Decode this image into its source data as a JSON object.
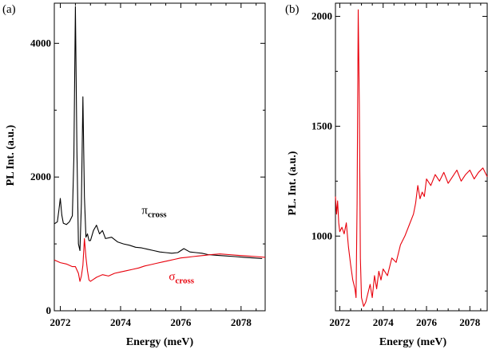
{
  "chart_data": [
    {
      "panel_label": "(a)",
      "type": "line",
      "xlabel": "Energy (meV)",
      "ylabel": "PL Int. (a.u.)",
      "xlim": [
        2071.8,
        2078.8
      ],
      "ylim": [
        0,
        4600
      ],
      "x_ticks": [
        2072,
        2074,
        2076,
        2078
      ],
      "x_tick_labels": [
        "2072",
        "2074",
        "2076",
        "2078"
      ],
      "y_ticks": [
        0,
        2000,
        4000
      ],
      "y_tick_labels": [
        "0",
        "2000",
        "4000"
      ],
      "grid": false,
      "legend": "inline labels",
      "series": [
        {
          "name": "π",
          "subscript": "cross",
          "color": "#000000",
          "label_at": [
            2074.7,
            1450
          ],
          "x": [
            2071.8,
            2071.9,
            2071.95,
            2072.0,
            2072.05,
            2072.1,
            2072.2,
            2072.3,
            2072.4,
            2072.45,
            2072.5,
            2072.55,
            2072.6,
            2072.65,
            2072.7,
            2072.75,
            2072.8,
            2072.85,
            2072.9,
            2072.95,
            2073.0,
            2073.1,
            2073.2,
            2073.3,
            2073.4,
            2073.5,
            2073.7,
            2073.9,
            2074.1,
            2074.3,
            2074.5,
            2074.7,
            2074.9,
            2075.1,
            2075.3,
            2075.5,
            2075.7,
            2075.9,
            2076.1,
            2076.3,
            2076.5,
            2076.7,
            2076.9,
            2077.2,
            2077.5,
            2077.8,
            2078.1,
            2078.4,
            2078.7
          ],
          "y": [
            1300,
            1330,
            1500,
            1680,
            1430,
            1310,
            1290,
            1330,
            1420,
            2300,
            4550,
            2400,
            1000,
            900,
            1600,
            3200,
            1700,
            1100,
            1150,
            1050,
            1050,
            1200,
            1280,
            1150,
            1200,
            1080,
            1100,
            1030,
            1000,
            980,
            950,
            940,
            920,
            900,
            880,
            870,
            860,
            870,
            930,
            880,
            870,
            860,
            840,
            830,
            820,
            810,
            800,
            790,
            780
          ]
        },
        {
          "name": "σ",
          "subscript": "cross",
          "color": "#e8000b",
          "label_at": [
            2075.6,
            460
          ],
          "x": [
            2071.8,
            2072.0,
            2072.2,
            2072.4,
            2072.5,
            2072.6,
            2072.65,
            2072.7,
            2072.75,
            2072.8,
            2072.85,
            2072.9,
            2072.95,
            2073.0,
            2073.1,
            2073.2,
            2073.4,
            2073.6,
            2073.8,
            2074.0,
            2074.2,
            2074.4,
            2074.6,
            2074.8,
            2075.0,
            2075.2,
            2075.4,
            2075.6,
            2075.8,
            2076.0,
            2076.2,
            2076.4,
            2076.6,
            2076.8,
            2077.0,
            2077.3,
            2077.6,
            2077.9,
            2078.2,
            2078.5,
            2078.8
          ],
          "y": [
            760,
            720,
            700,
            660,
            660,
            560,
            440,
            520,
            680,
            1080,
            800,
            600,
            460,
            440,
            470,
            500,
            540,
            520,
            560,
            580,
            600,
            620,
            640,
            670,
            690,
            710,
            730,
            750,
            770,
            790,
            800,
            810,
            820,
            830,
            840,
            850,
            840,
            830,
            820,
            810,
            800
          ]
        }
      ]
    },
    {
      "panel_label": "(b)",
      "type": "line",
      "xlabel": "Energy (meV)",
      "ylabel": "PL. Int. (a.u.)",
      "xlim": [
        2071.8,
        2078.8
      ],
      "ylim": [
        660,
        2060
      ],
      "x_ticks": [
        2072,
        2074,
        2076,
        2078
      ],
      "x_tick_labels": [
        "2072",
        "2074",
        "2076",
        "2078"
      ],
      "y_ticks": [
        1000,
        1500,
        2000
      ],
      "y_tick_labels": [
        "1000",
        "1500",
        "2000"
      ],
      "grid": false,
      "series": [
        {
          "color": "#e8000b",
          "x": [
            2071.8,
            2071.85,
            2071.9,
            2071.95,
            2072.0,
            2072.1,
            2072.2,
            2072.3,
            2072.4,
            2072.5,
            2072.6,
            2072.7,
            2072.75,
            2072.8,
            2072.85,
            2072.9,
            2072.95,
            2073.0,
            2073.1,
            2073.2,
            2073.3,
            2073.4,
            2073.5,
            2073.6,
            2073.7,
            2073.8,
            2073.9,
            2074.0,
            2074.2,
            2074.4,
            2074.6,
            2074.8,
            2075.0,
            2075.2,
            2075.4,
            2075.5,
            2075.6,
            2075.7,
            2075.8,
            2075.9,
            2076.0,
            2076.2,
            2076.4,
            2076.6,
            2076.8,
            2077.0,
            2077.2,
            2077.4,
            2077.6,
            2077.8,
            2078.0,
            2078.2,
            2078.4,
            2078.6,
            2078.8
          ],
          "y": [
            1180,
            1100,
            1160,
            1060,
            1020,
            1040,
            1010,
            1060,
            950,
            870,
            800,
            760,
            720,
            1150,
            2030,
            1600,
            900,
            720,
            680,
            700,
            740,
            780,
            720,
            820,
            760,
            840,
            800,
            850,
            820,
            900,
            880,
            960,
            1000,
            1050,
            1100,
            1150,
            1230,
            1170,
            1200,
            1180,
            1260,
            1230,
            1280,
            1250,
            1290,
            1240,
            1270,
            1300,
            1250,
            1280,
            1300,
            1260,
            1290,
            1310,
            1270
          ]
        }
      ]
    }
  ]
}
